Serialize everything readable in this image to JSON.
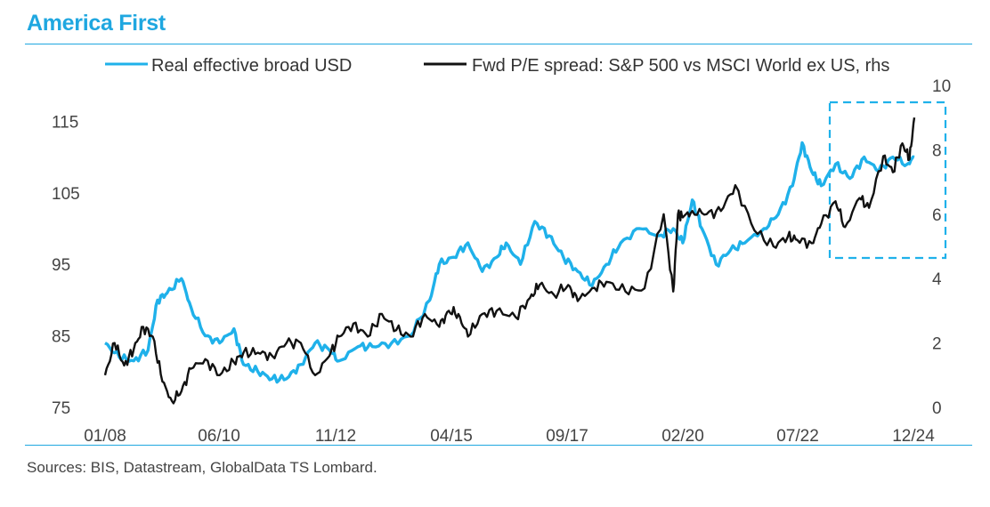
{
  "header": {
    "title": "America First",
    "source": "Sources: BIS, Datastream, GlobalData TS Lombard."
  },
  "colors": {
    "usd": "#1fb1ea",
    "pe": "#111111",
    "accent": "#1fa7e0",
    "box": "#1fb1ea"
  },
  "chart_data": {
    "type": "line",
    "title": "America First",
    "left_axis": {
      "ylim": [
        75,
        117.5
      ],
      "ticks": [
        75,
        85,
        95,
        105,
        115
      ]
    },
    "right_axis": {
      "ylim": [
        0,
        10
      ],
      "ticks": [
        0,
        2,
        4,
        6,
        8,
        10
      ]
    },
    "x_ticks": [
      "01/08",
      "06/10",
      "11/12",
      "04/15",
      "09/17",
      "02/20",
      "07/22",
      "12/24"
    ],
    "x_range": [
      "2008-01",
      "2024-12"
    ],
    "highlight": {
      "x_range": [
        "2023-04",
        "2024-12"
      ],
      "note": "dashed box"
    },
    "series": [
      {
        "name": "Real effective broad USD",
        "axis": "left",
        "t": [
          2008.0,
          2008.3,
          2008.6,
          2008.9,
          2009.1,
          2009.3,
          2009.6,
          2009.8,
          2010.1,
          2010.4,
          2010.7,
          2010.9,
          2011.2,
          2011.5,
          2011.8,
          2012.1,
          2012.4,
          2012.7,
          2012.9,
          2013.3,
          2013.6,
          2014.0,
          2014.4,
          2014.8,
          2015.0,
          2015.3,
          2015.6,
          2015.9,
          2016.2,
          2016.4,
          2016.7,
          2017.0,
          2017.3,
          2017.6,
          2017.9,
          2018.2,
          2018.5,
          2018.8,
          2019.2,
          2019.6,
          2019.9,
          2020.1,
          2020.3,
          2020.5,
          2020.8,
          2021.1,
          2021.4,
          2021.8,
          2022.1,
          2022.4,
          2022.6,
          2022.8,
          2023.0,
          2023.3,
          2023.6,
          2023.9,
          2024.2,
          2024.5,
          2024.8,
          2024.95
        ],
        "values": [
          84,
          82,
          81.5,
          83,
          90,
          91,
          93,
          89,
          85,
          84,
          86,
          81,
          80,
          79,
          79,
          81,
          84,
          83,
          81.5,
          83.5,
          83.5,
          84,
          85,
          90,
          95,
          96,
          98,
          94,
          96,
          98,
          95,
          101,
          99,
          96,
          94,
          92,
          95,
          98,
          100,
          99,
          100,
          98,
          104,
          100,
          95,
          97,
          98,
          100,
          102,
          106,
          112,
          108,
          106,
          109,
          107,
          110,
          108,
          110,
          109,
          110
        ],
        "points": []
      },
      {
        "name": "Fwd P/E spread: S&P 500 vs MSCI World ex US, rhs",
        "axis": "right",
        "t": [
          2008.0,
          2008.2,
          2008.4,
          2008.6,
          2008.8,
          2009.0,
          2009.2,
          2009.4,
          2009.6,
          2009.8,
          2010.1,
          2010.4,
          2010.7,
          2010.9,
          2011.2,
          2011.5,
          2011.8,
          2012.1,
          2012.4,
          2012.7,
          2012.9,
          2013.2,
          2013.5,
          2013.8,
          2014.1,
          2014.4,
          2014.7,
          2015.0,
          2015.2,
          2015.4,
          2015.6,
          2015.9,
          2016.2,
          2016.6,
          2016.9,
          2017.1,
          2017.4,
          2017.7,
          2017.9,
          2018.2,
          2018.5,
          2018.9,
          2019.3,
          2019.7,
          2019.9,
          2020.0,
          2020.1,
          2020.3,
          2020.6,
          2020.9,
          2021.2,
          2021.6,
          2022.0,
          2022.3,
          2022.5,
          2022.8,
          2023.0,
          2023.3,
          2023.5,
          2023.8,
          2024.0,
          2024.3,
          2024.5,
          2024.7,
          2024.85,
          2024.95
        ],
        "values": [
          1,
          2,
          1.3,
          1.8,
          2.5,
          2.2,
          0.8,
          0.2,
          0.5,
          1.2,
          1.5,
          1,
          1.4,
          1.7,
          1.7,
          1.6,
          2,
          2,
          1,
          1.6,
          2.2,
          2.6,
          2.2,
          2.9,
          2.4,
          2.2,
          2.9,
          2.5,
          3,
          2.9,
          2.2,
          2.9,
          3,
          2.8,
          3.4,
          3.8,
          3.5,
          3.8,
          3.3,
          3.7,
          3.9,
          3.6,
          3.7,
          6,
          3.6,
          6,
          5.9,
          6.1,
          6,
          6.1,
          6.9,
          5.5,
          5,
          5.3,
          5.2,
          5.1,
          5.7,
          6.4,
          5.6,
          6.5,
          6.2,
          7.8,
          7.3,
          8.2,
          7.7,
          9.0
        ],
        "points": []
      }
    ],
    "legend": "top"
  }
}
